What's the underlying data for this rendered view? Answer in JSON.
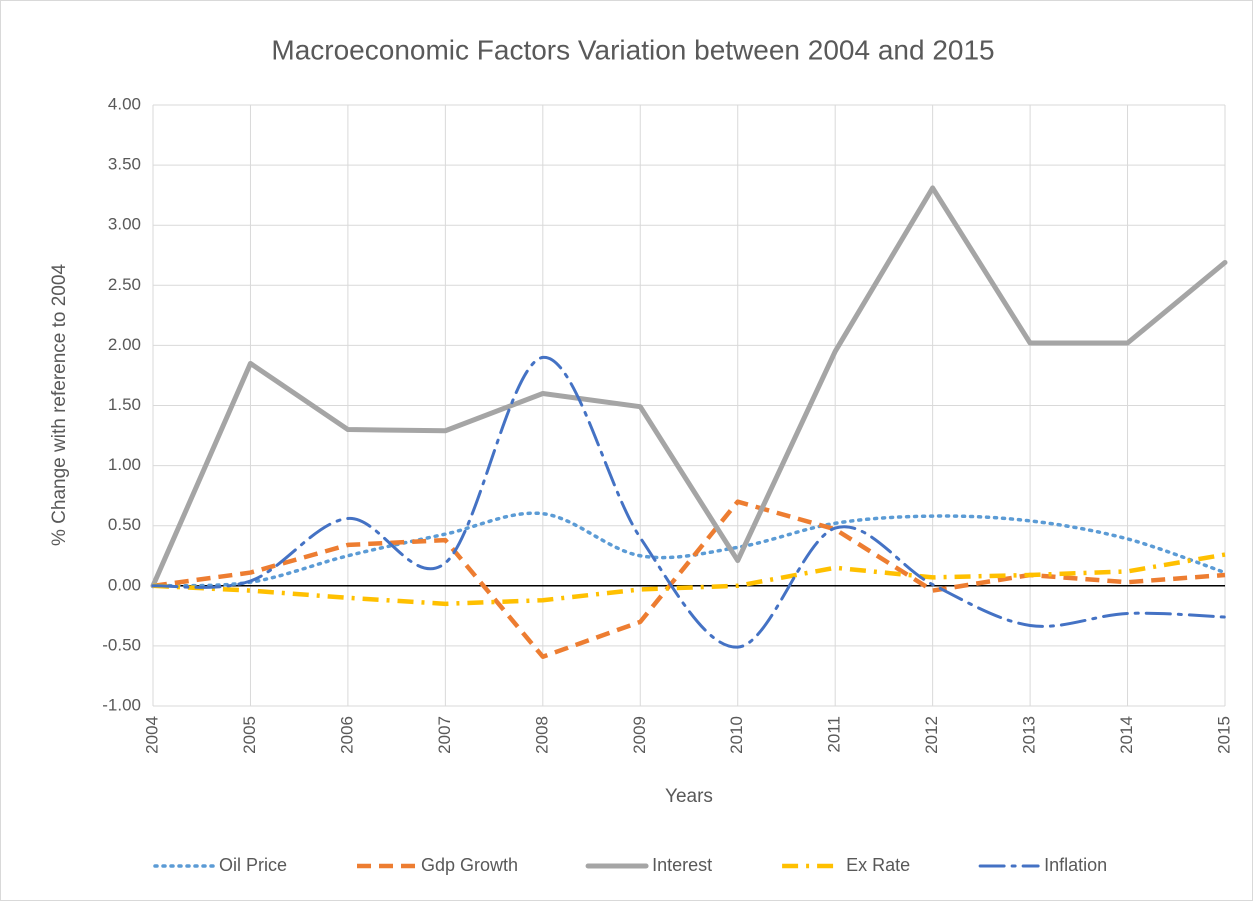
{
  "chart_data": {
    "type": "line",
    "title": "Macroeconomic Factors Variation between 2004 and 2015",
    "x_label": "Years",
    "y_label": "% Change  with reference to 2004",
    "categories": [
      "2004",
      "2005",
      "2006",
      "2007",
      "2008",
      "2009",
      "2010",
      "2011",
      "2012",
      "2013",
      "2014",
      "2015"
    ],
    "ylim": [
      -1,
      4
    ],
    "yticks": [
      {
        "value": -1,
        "label": "-1.00"
      },
      {
        "value": -0.5,
        "label": "-0.50"
      },
      {
        "value": 0,
        "label": "0.00"
      },
      {
        "value": 0.5,
        "label": "0.50"
      },
      {
        "value": 1,
        "label": "1.00"
      },
      {
        "value": 1.5,
        "label": "1.50"
      },
      {
        "value": 2,
        "label": "2.00"
      },
      {
        "value": 2.5,
        "label": "2.50"
      },
      {
        "value": 3,
        "label": "3.00"
      },
      {
        "value": 3.5,
        "label": "3.50"
      },
      {
        "value": 4,
        "label": "4.00"
      }
    ],
    "grid": true,
    "legend": "bottom",
    "series": [
      {
        "name": "Oil Price",
        "color": "#5b9bd5",
        "dash": "dot",
        "smooth": true,
        "values": [
          0,
          0.03,
          0.25,
          0.43,
          0.6,
          0.25,
          0.32,
          0.52,
          0.58,
          0.54,
          0.39,
          0.11
        ]
      },
      {
        "name": "Gdp Growth",
        "color": "#ed7d31",
        "dash": "dash",
        "smooth": false,
        "values": [
          0,
          0.11,
          0.34,
          0.38,
          -0.59,
          -0.3,
          0.7,
          0.47,
          -0.04,
          0.09,
          0.03,
          0.09
        ]
      },
      {
        "name": "Interest",
        "color": "#a5a5a5",
        "dash": "solid",
        "smooth": false,
        "values": [
          0,
          1.85,
          1.3,
          1.29,
          1.6,
          1.49,
          0.21,
          1.95,
          3.31,
          2.02,
          2.02,
          2.69
        ]
      },
      {
        "name": "Ex Rate",
        "color": "#ffc000",
        "dash": "dashdot",
        "smooth": false,
        "values": [
          0,
          -0.04,
          -0.1,
          -0.15,
          -0.12,
          -0.03,
          0,
          0.15,
          0.07,
          0.09,
          0.12,
          0.26
        ]
      },
      {
        "name": "Inflation",
        "color": "#4472c4",
        "dash": "longdashdot",
        "smooth": true,
        "values": [
          0,
          0.04,
          0.56,
          0.19,
          1.9,
          0.4,
          -0.51,
          0.48,
          0.01,
          -0.33,
          -0.23,
          -0.26
        ]
      }
    ]
  }
}
